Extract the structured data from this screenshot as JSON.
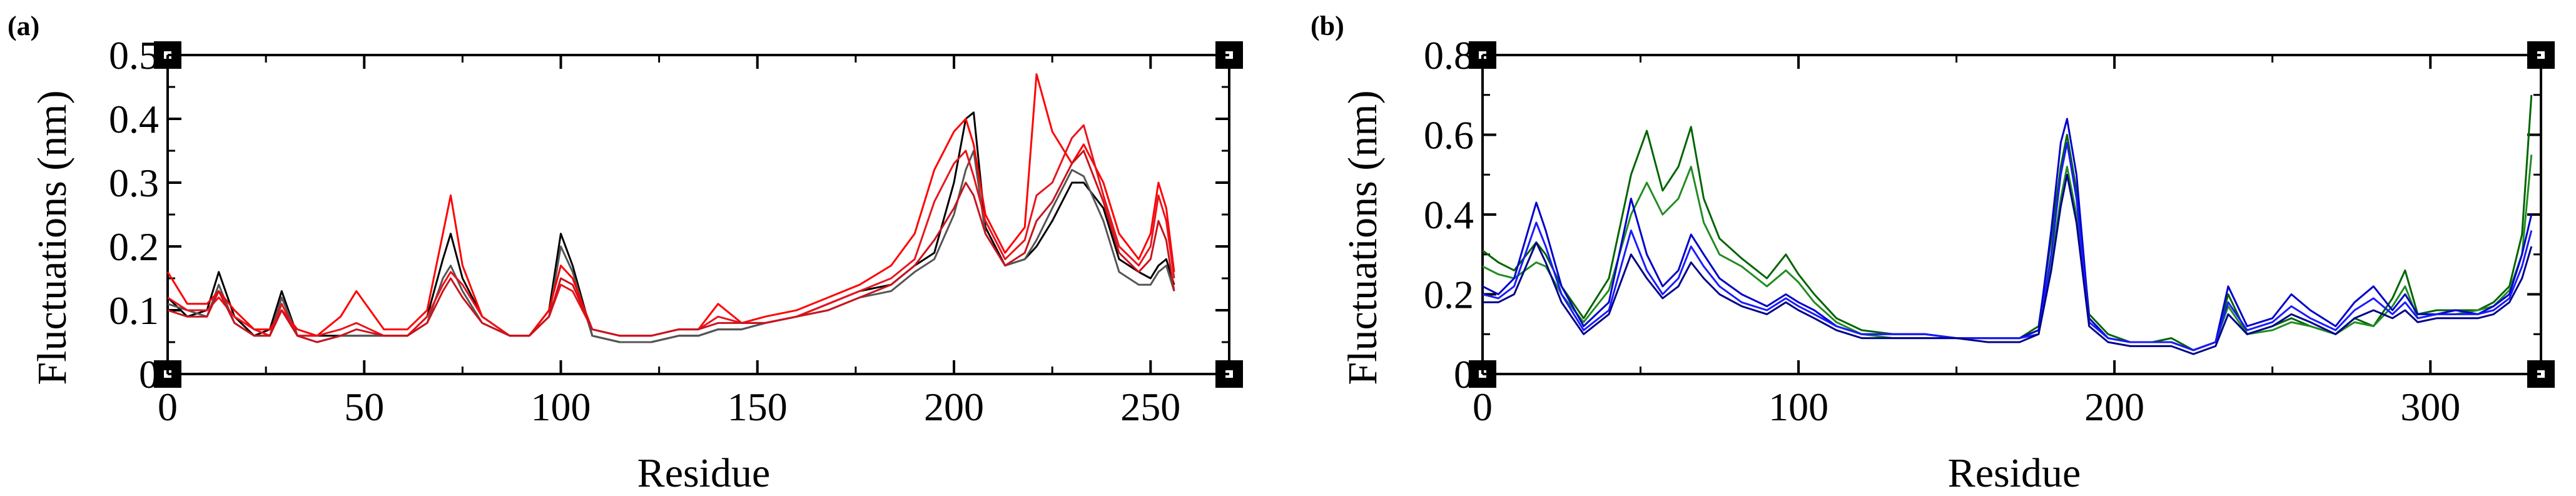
{
  "chart_data": [
    {
      "panel": "(a)",
      "type": "line",
      "xlabel": "Residue",
      "ylabel": "Fluctuations (nm)",
      "xlim": [
        0,
        270
      ],
      "ylim": [
        0,
        0.5
      ],
      "xticks": [
        "0",
        "50",
        "100",
        "150",
        "200",
        "250"
      ],
      "yticks": [
        "0",
        "0.1",
        "0.2",
        "0.3",
        "0.4",
        "0.5"
      ],
      "grid": false,
      "legend": "none",
      "x": [
        0,
        5,
        10,
        13,
        17,
        22,
        26,
        29,
        33,
        38,
        44,
        48,
        55,
        61,
        66,
        70,
        72,
        75,
        80,
        87,
        92,
        97,
        100,
        103,
        108,
        115,
        123,
        130,
        135,
        140,
        146,
        152,
        160,
        168,
        176,
        184,
        190,
        195,
        200,
        203,
        205,
        208,
        213,
        218,
        221,
        225,
        230,
        233,
        238,
        242,
        247,
        250,
        252,
        254,
        256
      ],
      "series": [
        {
          "color": "#000000",
          "values": [
            0.12,
            0.09,
            0.1,
            0.16,
            0.09,
            0.06,
            0.07,
            0.13,
            0.06,
            0.06,
            0.06,
            0.06,
            0.06,
            0.06,
            0.09,
            0.18,
            0.22,
            0.15,
            0.09,
            0.06,
            0.06,
            0.1,
            0.22,
            0.17,
            0.06,
            0.05,
            0.05,
            0.06,
            0.06,
            0.07,
            0.07,
            0.08,
            0.09,
            0.11,
            0.13,
            0.14,
            0.17,
            0.19,
            0.3,
            0.4,
            0.41,
            0.23,
            0.17,
            0.18,
            0.2,
            0.24,
            0.3,
            0.3,
            0.26,
            0.18,
            0.16,
            0.15,
            0.17,
            0.18,
            0.14
          ]
        },
        {
          "color": "#555555",
          "values": [
            0.11,
            0.1,
            0.09,
            0.14,
            0.08,
            0.06,
            0.06,
            0.12,
            0.06,
            0.05,
            0.06,
            0.06,
            0.06,
            0.06,
            0.08,
            0.15,
            0.17,
            0.13,
            0.08,
            0.06,
            0.06,
            0.09,
            0.2,
            0.16,
            0.06,
            0.05,
            0.05,
            0.06,
            0.06,
            0.07,
            0.07,
            0.08,
            0.09,
            0.1,
            0.12,
            0.13,
            0.16,
            0.18,
            0.25,
            0.32,
            0.35,
            0.22,
            0.17,
            0.18,
            0.21,
            0.26,
            0.32,
            0.31,
            0.24,
            0.16,
            0.14,
            0.14,
            0.16,
            0.17,
            0.13
          ]
        },
        {
          "color": "#ff0000",
          "values": [
            0.16,
            0.11,
            0.11,
            0.13,
            0.1,
            0.07,
            0.07,
            0.1,
            0.07,
            0.06,
            0.09,
            0.13,
            0.07,
            0.07,
            0.1,
            0.22,
            0.28,
            0.17,
            0.09,
            0.06,
            0.06,
            0.1,
            0.17,
            0.15,
            0.07,
            0.06,
            0.06,
            0.07,
            0.07,
            0.11,
            0.08,
            0.09,
            0.1,
            0.12,
            0.14,
            0.17,
            0.22,
            0.32,
            0.38,
            0.4,
            0.36,
            0.25,
            0.19,
            0.23,
            0.47,
            0.38,
            0.33,
            0.36,
            0.3,
            0.22,
            0.18,
            0.22,
            0.3,
            0.26,
            0.16
          ]
        },
        {
          "color": "#e8141e",
          "values": [
            0.12,
            0.1,
            0.1,
            0.12,
            0.09,
            0.07,
            0.06,
            0.11,
            0.06,
            0.06,
            0.07,
            0.08,
            0.06,
            0.06,
            0.09,
            0.14,
            0.16,
            0.14,
            0.09,
            0.06,
            0.06,
            0.09,
            0.14,
            0.13,
            0.07,
            0.06,
            0.06,
            0.07,
            0.07,
            0.09,
            0.08,
            0.08,
            0.09,
            0.11,
            0.13,
            0.15,
            0.18,
            0.27,
            0.33,
            0.35,
            0.31,
            0.24,
            0.18,
            0.21,
            0.28,
            0.3,
            0.37,
            0.39,
            0.28,
            0.2,
            0.17,
            0.2,
            0.28,
            0.24,
            0.15
          ]
        },
        {
          "color": "#c8141e",
          "values": [
            0.1,
            0.09,
            0.09,
            0.13,
            0.08,
            0.06,
            0.06,
            0.1,
            0.06,
            0.05,
            0.06,
            0.07,
            0.06,
            0.06,
            0.08,
            0.13,
            0.15,
            0.12,
            0.08,
            0.06,
            0.06,
            0.09,
            0.15,
            0.14,
            0.07,
            0.06,
            0.06,
            0.07,
            0.07,
            0.08,
            0.08,
            0.08,
            0.09,
            0.1,
            0.12,
            0.14,
            0.17,
            0.21,
            0.26,
            0.3,
            0.28,
            0.22,
            0.17,
            0.19,
            0.24,
            0.27,
            0.33,
            0.35,
            0.27,
            0.19,
            0.16,
            0.18,
            0.24,
            0.21,
            0.13
          ]
        }
      ]
    },
    {
      "panel": "(b)",
      "type": "line",
      "xlabel": "Residue",
      "ylabel": "Fluctuations (nm)",
      "xlim": [
        0,
        335
      ],
      "ylim": [
        0,
        0.8
      ],
      "xticks": [
        "0",
        "100",
        "200",
        "300"
      ],
      "yticks": [
        "0",
        "0.2",
        "0.4",
        "0.6",
        "0.8"
      ],
      "grid": false,
      "legend": "none",
      "x": [
        0,
        5,
        10,
        17,
        20,
        25,
        32,
        40,
        47,
        52,
        57,
        62,
        66,
        70,
        75,
        82,
        90,
        96,
        100,
        105,
        112,
        120,
        130,
        140,
        150,
        160,
        170,
        176,
        180,
        183,
        185,
        188,
        192,
        198,
        205,
        212,
        218,
        225,
        232,
        236,
        242,
        250,
        256,
        262,
        270,
        276,
        282,
        288,
        292,
        296,
        302,
        308,
        315,
        320,
        325,
        329,
        332
      ],
      "series": [
        {
          "color": "#006400",
          "values": [
            0.31,
            0.28,
            0.26,
            0.33,
            0.3,
            0.22,
            0.14,
            0.24,
            0.5,
            0.61,
            0.46,
            0.52,
            0.62,
            0.44,
            0.34,
            0.29,
            0.24,
            0.3,
            0.25,
            0.2,
            0.14,
            0.11,
            0.1,
            0.1,
            0.09,
            0.09,
            0.09,
            0.12,
            0.34,
            0.52,
            0.6,
            0.46,
            0.15,
            0.1,
            0.08,
            0.08,
            0.09,
            0.06,
            0.08,
            0.2,
            0.1,
            0.12,
            0.14,
            0.12,
            0.1,
            0.14,
            0.12,
            0.19,
            0.26,
            0.15,
            0.16,
            0.16,
            0.16,
            0.18,
            0.22,
            0.35,
            0.7
          ]
        },
        {
          "color": "#228b22",
          "values": [
            0.27,
            0.25,
            0.24,
            0.28,
            0.27,
            0.2,
            0.13,
            0.21,
            0.4,
            0.48,
            0.4,
            0.44,
            0.52,
            0.38,
            0.3,
            0.27,
            0.22,
            0.26,
            0.23,
            0.18,
            0.13,
            0.1,
            0.09,
            0.09,
            0.09,
            0.09,
            0.09,
            0.11,
            0.28,
            0.44,
            0.52,
            0.4,
            0.14,
            0.09,
            0.08,
            0.08,
            0.08,
            0.06,
            0.08,
            0.17,
            0.1,
            0.11,
            0.13,
            0.12,
            0.1,
            0.13,
            0.12,
            0.17,
            0.22,
            0.14,
            0.15,
            0.15,
            0.16,
            0.17,
            0.21,
            0.3,
            0.55
          ]
        },
        {
          "color": "#0000cd",
          "values": [
            0.22,
            0.2,
            0.24,
            0.43,
            0.36,
            0.22,
            0.12,
            0.18,
            0.44,
            0.3,
            0.22,
            0.26,
            0.35,
            0.3,
            0.24,
            0.2,
            0.17,
            0.2,
            0.18,
            0.16,
            0.12,
            0.1,
            0.1,
            0.1,
            0.09,
            0.09,
            0.09,
            0.11,
            0.36,
            0.58,
            0.64,
            0.5,
            0.14,
            0.09,
            0.08,
            0.08,
            0.08,
            0.06,
            0.08,
            0.22,
            0.12,
            0.14,
            0.2,
            0.16,
            0.12,
            0.18,
            0.22,
            0.16,
            0.2,
            0.15,
            0.15,
            0.16,
            0.15,
            0.17,
            0.2,
            0.3,
            0.4
          ]
        },
        {
          "color": "#1a1aff",
          "values": [
            0.2,
            0.19,
            0.22,
            0.38,
            0.32,
            0.2,
            0.11,
            0.16,
            0.36,
            0.26,
            0.2,
            0.24,
            0.32,
            0.27,
            0.22,
            0.18,
            0.16,
            0.19,
            0.17,
            0.15,
            0.12,
            0.1,
            0.1,
            0.1,
            0.09,
            0.09,
            0.09,
            0.1,
            0.3,
            0.5,
            0.58,
            0.44,
            0.13,
            0.09,
            0.08,
            0.08,
            0.08,
            0.06,
            0.08,
            0.18,
            0.11,
            0.13,
            0.17,
            0.14,
            0.11,
            0.16,
            0.19,
            0.15,
            0.18,
            0.14,
            0.15,
            0.15,
            0.15,
            0.16,
            0.19,
            0.27,
            0.36
          ]
        },
        {
          "color": "#00008b",
          "values": [
            0.18,
            0.18,
            0.2,
            0.33,
            0.28,
            0.18,
            0.1,
            0.15,
            0.3,
            0.24,
            0.19,
            0.22,
            0.28,
            0.24,
            0.2,
            0.17,
            0.15,
            0.18,
            0.16,
            0.14,
            0.11,
            0.09,
            0.09,
            0.09,
            0.09,
            0.08,
            0.08,
            0.1,
            0.26,
            0.42,
            0.5,
            0.38,
            0.12,
            0.08,
            0.07,
            0.07,
            0.07,
            0.05,
            0.07,
            0.15,
            0.1,
            0.12,
            0.15,
            0.13,
            0.1,
            0.14,
            0.16,
            0.14,
            0.16,
            0.13,
            0.14,
            0.14,
            0.14,
            0.15,
            0.18,
            0.24,
            0.32
          ]
        }
      ]
    }
  ]
}
